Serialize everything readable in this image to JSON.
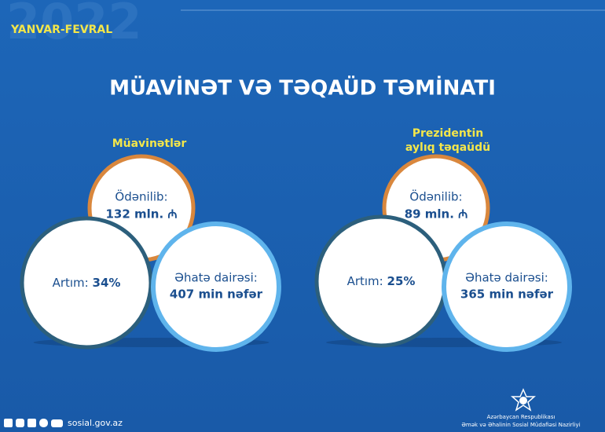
{
  "header": {
    "year": "2022",
    "period": "YANVAR-FEVRAL",
    "title": "MÜAVİNƏT VƏ TƏQAÜD TƏMİNATI"
  },
  "sections": [
    {
      "title": [
        "Müavinətlər"
      ],
      "paid_label": "Ödənilib:",
      "paid_value": "132 mln. ₼",
      "growth_label": "Artım:",
      "growth_value": "34%",
      "coverage_label": "Əhatə dairəsi:",
      "coverage_value": "407 min nəfər"
    },
    {
      "title": [
        "Prezidentin",
        "aylıq təqaüdü"
      ],
      "paid_label": "Ödənilib:",
      "paid_value": "89 mln. ₼",
      "growth_label": "Artım:",
      "growth_value": "25%",
      "coverage_label": "Əhatə dairəsi:",
      "coverage_value": "365 min nəfər"
    }
  ],
  "footer": {
    "website": "sosial.gov.az",
    "org_line1": "Azərbaycan Respublikası",
    "org_line2": "Əmək və Əhalinin Sosial Müdafiəsi Nazirliyi"
  }
}
